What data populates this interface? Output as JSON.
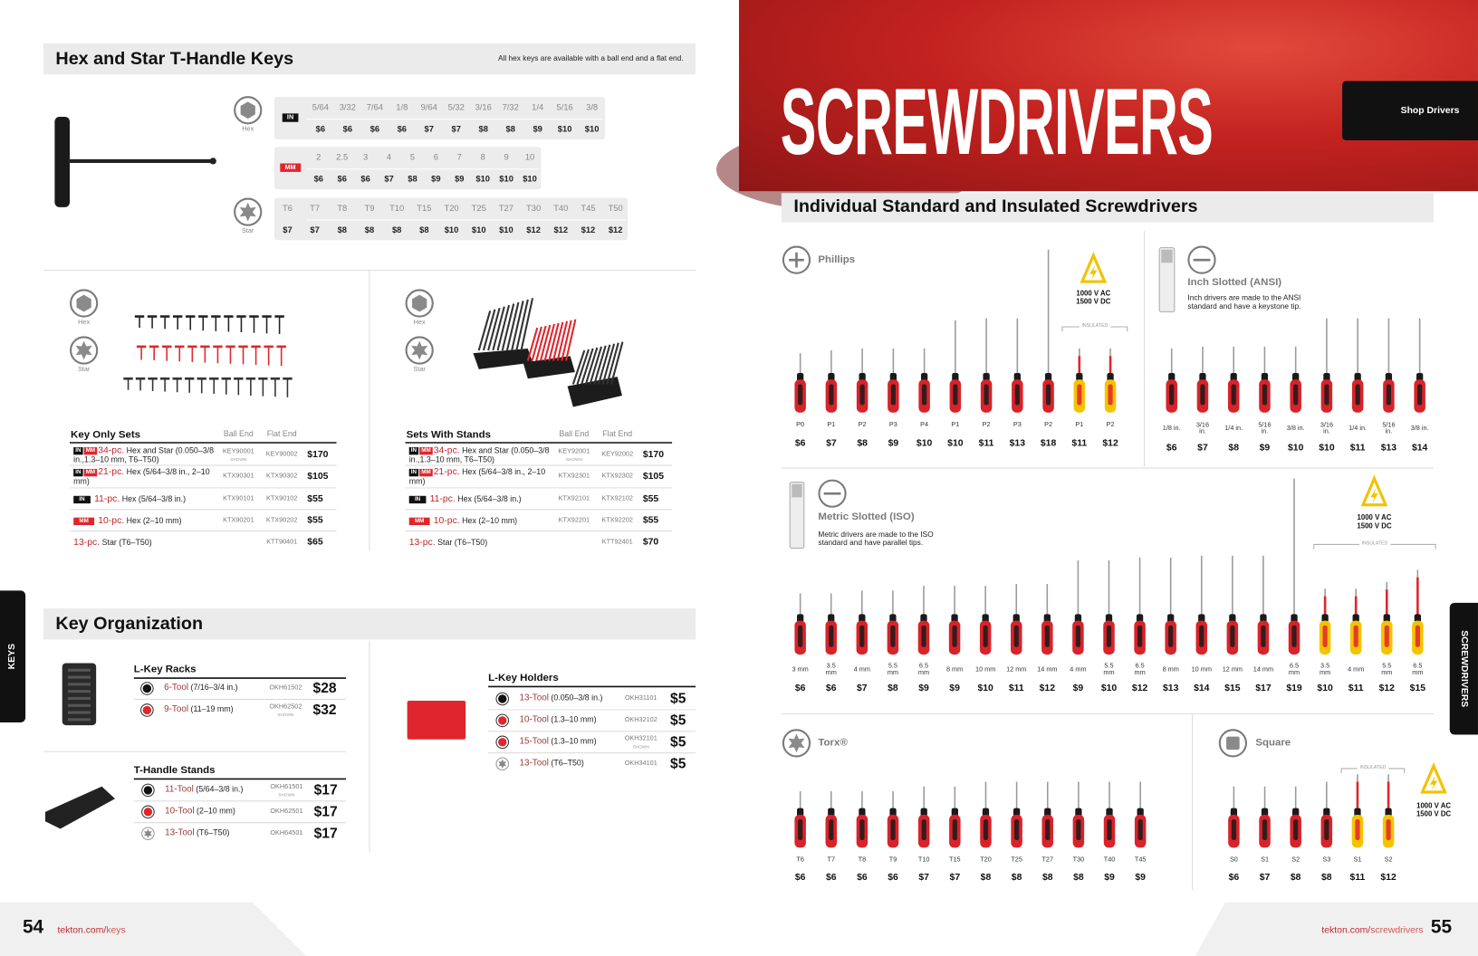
{
  "left_page": {
    "hex_star": {
      "title": "Hex and Star T-Handle Keys",
      "note": "All hex keys are available with a ball end and a flat end.",
      "hex_label": "Hex",
      "star_label": "Star",
      "tables": [
        {
          "badge": {
            "text": "IN",
            "color": "#111111"
          },
          "sizes": [
            "5/64",
            "3/32",
            "7/64",
            "1/8",
            "9/64",
            "5/32",
            "3/16",
            "7/32",
            "1/4",
            "5/16",
            "3/8"
          ],
          "prices": [
            "$6",
            "$6",
            "$6",
            "$6",
            "$7",
            "$7",
            "$8",
            "$8",
            "$9",
            "$10",
            "$10"
          ]
        },
        {
          "badge": {
            "text": "MM",
            "color": "#e0262d"
          },
          "sizes": [
            "2",
            "2.5",
            "3",
            "4",
            "5",
            "6",
            "7",
            "8",
            "9",
            "10"
          ],
          "prices": [
            "$6",
            "$6",
            "$6",
            "$7",
            "$8",
            "$9",
            "$9",
            "$10",
            "$10",
            "$10"
          ]
        },
        {
          "sizes": [
            "T6",
            "T7",
            "T8",
            "T9",
            "T10",
            "T15",
            "T20",
            "T25",
            "T27",
            "T30",
            "T40",
            "T45",
            "T50"
          ],
          "prices": [
            "$7",
            "$7",
            "$8",
            "$8",
            "$8",
            "$8",
            "$10",
            "$10",
            "$10",
            "$12",
            "$12",
            "$12",
            "$12"
          ]
        }
      ]
    },
    "set_groups": [
      {
        "hex_label": "Hex",
        "star_label": "Star",
        "heading": "Key Only Sets",
        "ball_header": "Ball End",
        "flat_header": "Flat End",
        "rows": [
          {
            "badges": [
              {
                "text": "IN",
                "color": "#111111"
              },
              {
                "text": "MM",
                "color": "#e0262d"
              }
            ],
            "qty": "34-pc.",
            "desc": "Hex and Star (0.050–3/8 in.,1.3–10 mm, T6–T50)",
            "ball": "KEY90001",
            "ball_note": "SHOWN",
            "flat": "KEY90002",
            "price": "$170"
          },
          {
            "badges": [
              {
                "text": "IN",
                "color": "#111111"
              },
              {
                "text": "MM",
                "color": "#e0262d"
              }
            ],
            "qty": "21-pc.",
            "desc": "Hex (5/64–3/8 in., 2–10 mm)",
            "ball": "KTX90301",
            "flat": "KTX90302",
            "price": "$105"
          },
          {
            "badges": [
              {
                "text": "IN",
                "color": "#111111"
              }
            ],
            "qty": "11-pc.",
            "desc": "Hex (5/64–3/8 in.)",
            "ball": "KTX90101",
            "flat": "KTX90102",
            "price": "$55"
          },
          {
            "badges": [
              {
                "text": "MM",
                "color": "#e0262d"
              }
            ],
            "qty": "10-pc.",
            "desc": "Hex (2–10 mm)",
            "ball": "KTX90201",
            "flat": "KTX90202",
            "price": "$55"
          },
          {
            "badges": [],
            "qty": "13-pc.",
            "desc": "Star (T6–T50)",
            "flat": "KTT90401",
            "price": "$65"
          }
        ]
      },
      {
        "hex_label": "Hex",
        "star_label": "Star",
        "heading": "Sets With Stands",
        "ball_header": "Ball End",
        "flat_header": "Flat End",
        "rows": [
          {
            "badges": [
              {
                "text": "IN",
                "color": "#111111"
              },
              {
                "text": "MM",
                "color": "#e0262d"
              }
            ],
            "qty": "34-pc.",
            "desc": "Hex and Star (0.050–3/8 in.,1.3–10 mm, T6–T50)",
            "ball": "KEY92001",
            "ball_note": "SHOWN",
            "flat": "KEY92002",
            "price": "$170"
          },
          {
            "badges": [
              {
                "text": "IN",
                "color": "#111111"
              },
              {
                "text": "MM",
                "color": "#e0262d"
              }
            ],
            "qty": "21-pc.",
            "desc": "Hex (5/64–3/8 in., 2–10 mm)",
            "ball": "KTX92301",
            "flat": "KTX92302",
            "price": "$105"
          },
          {
            "badges": [
              {
                "text": "IN",
                "color": "#111111"
              }
            ],
            "qty": "11-pc.",
            "desc": "Hex (5/64–3/8 in.)",
            "ball": "KTX92101",
            "flat": "KTX92102",
            "price": "$55"
          },
          {
            "badges": [
              {
                "text": "MM",
                "color": "#e0262d"
              }
            ],
            "qty": "10-pc.",
            "desc": "Hex (2–10 mm)",
            "ball": "KTX92201",
            "flat": "KTX92202",
            "price": "$55"
          },
          {
            "badges": [],
            "qty": "13-pc.",
            "desc": "Star (T6–T50)",
            "flat": "KTT92401",
            "price": "$70"
          }
        ]
      }
    ],
    "organization": {
      "title": "Key Organization",
      "groups": [
        {
          "heading": "L-Key Racks",
          "rows": [
            {
              "icon": "dot",
              "color": "#111111",
              "qty": "6-Tool",
              "desc": "(7/16–3/4 in.)",
              "code": "OKH61502",
              "price": "$28"
            },
            {
              "icon": "dot",
              "color": "#e0262d",
              "qty": "9-Tool",
              "desc": "(11–19 mm)",
              "code": "OKH62502",
              "code_note": "SHOWN",
              "price": "$32"
            }
          ]
        },
        {
          "heading": "T-Handle Stands",
          "rows": [
            {
              "icon": "dot",
              "color": "#111111",
              "qty": "11-Tool",
              "desc": "(5/64–3/8 in.)",
              "code": "OKH61501",
              "code_note": "SHOWN",
              "price": "$17"
            },
            {
              "icon": "dot",
              "color": "#e0262d",
              "qty": "10-Tool",
              "desc": "(2–10 mm)",
              "code": "OKH62501",
              "price": "$17"
            },
            {
              "icon": "star",
              "color": "#888888",
              "qty": "13-Tool",
              "desc": "(T6–T50)",
              "code": "OKH64501",
              "price": "$17"
            }
          ]
        },
        {
          "heading": "L-Key Holders",
          "rows": [
            {
              "icon": "dot",
              "color": "#111111",
              "qty": "13-Tool",
              "desc": "(0.050–3/8 in.)",
              "code": "OKH31101",
              "price": "$5"
            },
            {
              "icon": "dot",
              "color": "#e0262d",
              "qty": "10-Tool",
              "desc": "(1.3–10 mm)",
              "code": "OKH32102",
              "price": "$5"
            },
            {
              "icon": "dot",
              "color": "#e0262d",
              "qty": "15-Tool",
              "desc": "(1.3–10 mm)",
              "code": "OKH32101",
              "code_note": "SHOWN",
              "price": "$5"
            },
            {
              "icon": "star",
              "color": "#888888",
              "qty": "13-Tool",
              "desc": "(T6–T50)",
              "code": "OKH34101",
              "price": "$5"
            }
          ]
        }
      ]
    },
    "tab": "KEYS",
    "footer": {
      "page_number": "54",
      "url_host": "tekton.com/",
      "url_path": "keys"
    }
  },
  "right_page": {
    "hero_title": "SCREWDRIVERS",
    "qr_label": "Shop Drivers",
    "section_title": "Individual Standard and Insulated Screwdrivers",
    "groups": [
      {
        "label": "Phillips",
        "icon": "phillips",
        "voltage": [
          "1000 V AC",
          "1500 V DC"
        ],
        "insulated_label": "INSULATED",
        "items": [
          {
            "size": "P0",
            "price": "$6"
          },
          {
            "size": "P1",
            "price": "$7"
          },
          {
            "size": "P2",
            "price": "$8"
          },
          {
            "size": "P3",
            "price": "$9"
          },
          {
            "size": "P4",
            "price": "$10"
          },
          {
            "size": "P1",
            "price": "$10"
          },
          {
            "size": "P2",
            "price": "$11"
          },
          {
            "size": "P3",
            "price": "$13"
          },
          {
            "size": "P2",
            "price": "$18"
          },
          {
            "size": "P1",
            "price": "$11",
            "insulated": true
          },
          {
            "size": "P2",
            "price": "$12",
            "insulated": true
          }
        ]
      },
      {
        "label": "Inch Slotted (ANSI)",
        "icon": "slotted",
        "note": "Inch drivers are made to the ANSI standard and have a keystone tip.",
        "items": [
          {
            "size": "1/8 in.",
            "price": "$6"
          },
          {
            "size": "3/16 in.",
            "price": "$7"
          },
          {
            "size": "1/4 in.",
            "price": "$8"
          },
          {
            "size": "5/16 in.",
            "price": "$9"
          },
          {
            "size": "3/8 in.",
            "price": "$10"
          },
          {
            "size": "3/16 in.",
            "price": "$10"
          },
          {
            "size": "1/4 in.",
            "price": "$11"
          },
          {
            "size": "5/16 in.",
            "price": "$13"
          },
          {
            "size": "3/8 in.",
            "price": "$14"
          }
        ]
      },
      {
        "label": "Metric Slotted (ISO)",
        "icon": "slotted",
        "note": "Metric drivers are made to the ISO standard and have parallel tips.",
        "voltage": [
          "1000 V AC",
          "1500 V DC"
        ],
        "insulated_label": "INSULATED",
        "items": [
          {
            "size": "3 mm",
            "price": "$6"
          },
          {
            "size": "3.5 mm",
            "price": "$6"
          },
          {
            "size": "4 mm",
            "price": "$7"
          },
          {
            "size": "5.5 mm",
            "price": "$8"
          },
          {
            "size": "6.5 mm",
            "price": "$9"
          },
          {
            "size": "8 mm",
            "price": "$9"
          },
          {
            "size": "10 mm",
            "price": "$10"
          },
          {
            "size": "12 mm",
            "price": "$11"
          },
          {
            "size": "14 mm",
            "price": "$12"
          },
          {
            "size": "4 mm",
            "price": "$9"
          },
          {
            "size": "5.5 mm",
            "price": "$10"
          },
          {
            "size": "6.5 mm",
            "price": "$12"
          },
          {
            "size": "8 mm",
            "price": "$13"
          },
          {
            "size": "10 mm",
            "price": "$14"
          },
          {
            "size": "12 mm",
            "price": "$15"
          },
          {
            "size": "14 mm",
            "price": "$17"
          },
          {
            "size": "6.5 mm",
            "price": "$19"
          },
          {
            "size": "3.5 mm",
            "price": "$10",
            "insulated": true
          },
          {
            "size": "4 mm",
            "price": "$11",
            "insulated": true
          },
          {
            "size": "5.5 mm",
            "price": "$12",
            "insulated": true
          },
          {
            "size": "6.5 mm",
            "price": "$15",
            "insulated": true
          }
        ]
      },
      {
        "label": "Torx®",
        "icon": "torx",
        "items": [
          {
            "size": "T6",
            "price": "$6"
          },
          {
            "size": "T7",
            "price": "$6"
          },
          {
            "size": "T8",
            "price": "$6"
          },
          {
            "size": "T9",
            "price": "$6"
          },
          {
            "size": "T10",
            "price": "$7"
          },
          {
            "size": "T15",
            "price": "$7"
          },
          {
            "size": "T20",
            "price": "$8"
          },
          {
            "size": "T25",
            "price": "$8"
          },
          {
            "size": "T27",
            "price": "$8"
          },
          {
            "size": "T30",
            "price": "$8"
          },
          {
            "size": "T40",
            "price": "$9"
          },
          {
            "size": "T45",
            "price": "$9"
          }
        ]
      },
      {
        "label": "Square",
        "icon": "square",
        "voltage": [
          "1000 V AC",
          "1500 V DC"
        ],
        "insulated_label": "INSULATED",
        "items": [
          {
            "size": "S0",
            "price": "$6"
          },
          {
            "size": "S1",
            "price": "$7"
          },
          {
            "size": "S2",
            "price": "$8"
          },
          {
            "size": "S3",
            "price": "$8"
          },
          {
            "size": "S1",
            "price": "$11",
            "insulated": true
          },
          {
            "size": "S2",
            "price": "$12",
            "insulated": true
          }
        ]
      }
    ],
    "tab": "SCREWDRIVERS",
    "footer": {
      "page_number": "55",
      "url_host": "tekton.com/",
      "url_path": "screwdrivers"
    }
  }
}
